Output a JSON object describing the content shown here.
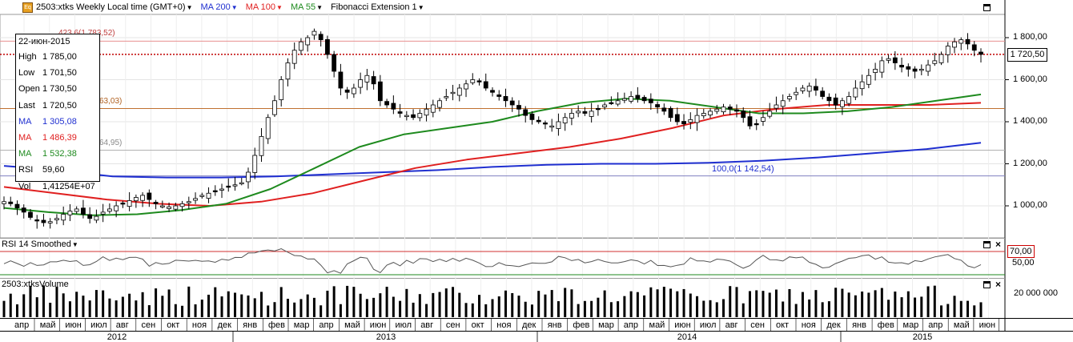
{
  "header": {
    "icon_label": "Eq",
    "symbol_info": "2503:xtks Weekly Local time (GMT+0)",
    "ma200": "MA 200",
    "ma100": "MA 100",
    "ma55": "MA 55",
    "fib": "Fibonacci Extension 1"
  },
  "colors": {
    "ma200": "#1f2fd0",
    "ma100": "#e02020",
    "ma55": "#1e8a1e",
    "fib": "#b03020"
  },
  "infobox": {
    "date": "22-июн-2015",
    "rows": [
      {
        "k": "High",
        "v": "1 785,00",
        "color": "#000000"
      },
      {
        "k": "Low",
        "v": "1 701,50",
        "color": "#000000"
      },
      {
        "k": "Open",
        "v": "1 730,50",
        "color": "#000000"
      },
      {
        "k": "Last",
        "v": "1 720,50",
        "color": "#000000"
      },
      {
        "k": "MA",
        "v": "1 305,08",
        "color": "#1f2fd0"
      },
      {
        "k": "MA",
        "v": "1 486,39",
        "color": "#e02020"
      },
      {
        "k": "MA",
        "v": "1 532,38",
        "color": "#1e8a1e"
      },
      {
        "k": "RSI",
        "v": "59,60",
        "color": "#000000"
      },
      {
        "k": "Vol",
        "v": "1,41254E+07",
        "color": "#000000"
      }
    ]
  },
  "price_axis": {
    "ticks": [
      "1 800,00",
      "1 600,00",
      "1 400,00",
      "1 200,00",
      "1 000,00"
    ],
    "last_label": "1 720,50"
  },
  "fib_labels": {
    "f423": "423,6(1 783,52)",
    "f_mid": "63,03)",
    "f_low": "64,95)",
    "f100": "100,0(1 142,54)"
  },
  "rsi_pane": {
    "title": "RSI 14 Smoothed",
    "level_label": "70,00",
    "tick": "50,00"
  },
  "volume_pane": {
    "title": "2503:xtksVolume",
    "tick": "20 000 000"
  },
  "time_axis": {
    "months": [
      "апр",
      "май",
      "июн",
      "июл",
      "авг",
      "сен",
      "окт",
      "ноя",
      "дек",
      "янв",
      "фев",
      "мар",
      "апр",
      "май",
      "июн",
      "июл",
      "авг",
      "сен",
      "окт",
      "ноя",
      "дек",
      "янв",
      "фев",
      "мар",
      "апр",
      "май",
      "июн",
      "июл",
      "авг",
      "сен",
      "окт",
      "ноя",
      "дек",
      "янв",
      "фев",
      "мар",
      "апр",
      "май",
      "июн"
    ],
    "years": [
      "2012",
      "2013",
      "2014",
      "2015"
    ]
  },
  "chart_data": {
    "type": "candlestick",
    "period": "weekly",
    "y_range": [
      850,
      1880
    ],
    "last": 1720.5,
    "fib_levels": [
      1783.52,
      1463.03,
      1264.95,
      1142.54
    ],
    "close_path": [
      1020,
      1010,
      990,
      970,
      945,
      930,
      920,
      925,
      940,
      960,
      975,
      985,
      960,
      940,
      950,
      970,
      985,
      1000,
      1010,
      1025,
      1040,
      1050,
      1030,
      1010,
      1000,
      995,
      1000,
      1010,
      1020,
      1035,
      1050,
      1060,
      1070,
      1080,
      1090,
      1100,
      1110,
      1160,
      1240,
      1330,
      1420,
      1500,
      1600,
      1680,
      1740,
      1780,
      1800,
      1830,
      1790,
      1720,
      1640,
      1560,
      1540,
      1560,
      1600,
      1620,
      1580,
      1500,
      1480,
      1460,
      1440,
      1430,
      1420,
      1440,
      1460,
      1480,
      1500,
      1520,
      1540,
      1560,
      1580,
      1600,
      1590,
      1560,
      1540,
      1520,
      1500,
      1480,
      1460,
      1430,
      1410,
      1400,
      1390,
      1380,
      1400,
      1420,
      1440,
      1450,
      1440,
      1450,
      1460,
      1480,
      1490,
      1500,
      1510,
      1520,
      1510,
      1500,
      1490,
      1470,
      1450,
      1420,
      1400,
      1390,
      1410,
      1430,
      1440,
      1450,
      1460,
      1470,
      1460,
      1450,
      1420,
      1380,
      1390,
      1420,
      1450,
      1480,
      1500,
      1520,
      1540,
      1560,
      1570,
      1550,
      1520,
      1500,
      1480,
      1500,
      1520,
      1560,
      1590,
      1620,
      1650,
      1690,
      1700,
      1680,
      1660,
      1650,
      1640,
      1650,
      1670,
      1690,
      1720,
      1760,
      1780,
      1790,
      1770,
      1740,
      1720.5
    ],
    "ma200": [
      1190,
      1170,
      1140,
      1135,
      1135,
      1140,
      1150,
      1160,
      1170,
      1185,
      1195,
      1200,
      1200,
      1205,
      1215,
      1230,
      1250,
      1270,
      1300
    ],
    "ma100": [
      1090,
      1060,
      1030,
      1010,
      1000,
      1020,
      1060,
      1120,
      1180,
      1220,
      1250,
      1280,
      1320,
      1370,
      1430,
      1460,
      1480,
      1480,
      1480,
      1490
    ],
    "ma55": [
      990,
      970,
      955,
      960,
      980,
      1010,
      1080,
      1180,
      1280,
      1340,
      1370,
      1400,
      1450,
      1490,
      1510,
      1500,
      1470,
      1440,
      1440,
      1450,
      1470,
      1500,
      1530
    ],
    "rsi_level": 70,
    "rsi_tick": 50
  }
}
